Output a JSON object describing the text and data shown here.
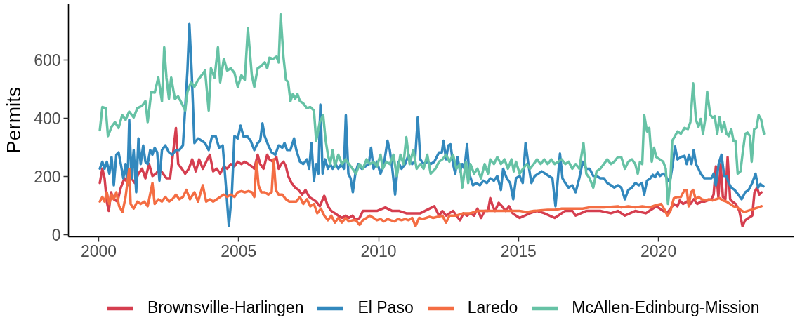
{
  "chart_data": {
    "type": "line",
    "ylabel": "Permits",
    "xlim": [
      1998.92,
      2024.84
    ],
    "ylim": [
      -7,
      793
    ],
    "xticks": [
      2000,
      2005,
      2010,
      2015,
      2020
    ],
    "yticks": [
      0,
      200,
      400,
      600
    ],
    "grid": false,
    "legend": "bottom",
    "line_style": "solid",
    "series": [
      {
        "name": "Brownsville-Harlingen",
        "color": "#d53e4f",
        "x": [
          2000.04,
          2000.13,
          2000.21,
          2000.29,
          2000.36,
          2000.44,
          2000.54,
          2000.67,
          2000.79,
          2000.92,
          2001.04,
          2001.17,
          2001.29,
          2001.42,
          2001.55,
          2001.67,
          2001.8,
          2001.92,
          2002.05,
          2002.17,
          2002.3,
          2002.42,
          2002.55,
          2002.67,
          2002.76,
          2002.84,
          2002.97,
          2003.09,
          2003.22,
          2003.34,
          2003.47,
          2003.59,
          2003.72,
          2003.84,
          2003.97,
          2004.09,
          2004.22,
          2004.34,
          2004.47,
          2004.59,
          2004.72,
          2004.85,
          2004.97,
          2005.1,
          2005.22,
          2005.35,
          2005.47,
          2005.56,
          2005.68,
          2005.77,
          2005.89,
          2006.02,
          2006.1,
          2006.23,
          2006.35,
          2006.43,
          2006.52,
          2006.6,
          2006.69,
          2006.77,
          2006.89,
          2007.02,
          2007.14,
          2007.27,
          2007.39,
          2007.52,
          2007.65,
          2007.77,
          2007.9,
          2008.06,
          2008.19,
          2008.31,
          2008.44,
          2008.56,
          2008.69,
          2008.82,
          2008.94,
          2009.07,
          2009.19,
          2009.32,
          2009.44,
          2009.69,
          2009.94,
          2010.24,
          2010.49,
          2010.74,
          2010.99,
          2011.24,
          2011.49,
          2011.74,
          2011.99,
          2012.16,
          2012.28,
          2012.41,
          2012.53,
          2012.66,
          2012.78,
          2012.91,
          2013.03,
          2013.16,
          2013.28,
          2013.41,
          2013.53,
          2013.66,
          2013.79,
          2013.91,
          2013.99,
          2014.08,
          2014.16,
          2014.29,
          2014.41,
          2014.54,
          2014.66,
          2014.79,
          2014.91,
          2015.04,
          2015.41,
          2015.66,
          2015.92,
          2016.29,
          2016.67,
          2016.92,
          2017.04,
          2017.42,
          2017.67,
          2017.92,
          2018.3,
          2018.55,
          2018.8,
          2019.17,
          2019.55,
          2019.67,
          2019.8,
          2019.92,
          2020.05,
          2020.17,
          2020.3,
          2020.43,
          2020.55,
          2020.68,
          2020.76,
          2020.88,
          2021.01,
          2021.14,
          2021.26,
          2021.39,
          2021.51,
          2021.64,
          2021.76,
          2021.89,
          2021.97,
          2022.05,
          2022.14,
          2022.22,
          2022.3,
          2022.39,
          2022.47,
          2022.56,
          2022.64,
          2022.76,
          2022.89,
          2023.0,
          2023.1,
          2023.22,
          2023.35,
          2023.43,
          2023.52,
          2023.6,
          2023.68
        ],
        "values": [
          178,
          227,
          194,
          114,
          82,
          146,
          122,
          114,
          162,
          194,
          178,
          194,
          178,
          210,
          227,
          194,
          243,
          202,
          210,
          227,
          210,
          194,
          194,
          291,
          367,
          243,
          227,
          210,
          227,
          259,
          218,
          259,
          227,
          251,
          275,
          218,
          227,
          210,
          235,
          227,
          243,
          235,
          251,
          243,
          251,
          243,
          235,
          227,
          275,
          243,
          227,
          275,
          259,
          251,
          267,
          227,
          243,
          251,
          235,
          202,
          178,
          162,
          154,
          138,
          154,
          130,
          122,
          114,
          98,
          134,
          98,
          82,
          74,
          66,
          58,
          66,
          58,
          66,
          50,
          58,
          82,
          82,
          82,
          94,
          82,
          82,
          74,
          74,
          74,
          86,
          98,
          66,
          82,
          66,
          74,
          82,
          66,
          50,
          74,
          66,
          74,
          66,
          90,
          58,
          82,
          82,
          126,
          98,
          82,
          110,
          98,
          82,
          98,
          74,
          66,
          58,
          74,
          82,
          74,
          58,
          82,
          82,
          66,
          82,
          82,
          82,
          74,
          82,
          66,
          82,
          74,
          82,
          90,
          98,
          90,
          82,
          74,
          90,
          106,
          98,
          118,
          106,
          114,
          106,
          122,
          106,
          114,
          114,
          118,
          122,
          138,
          235,
          130,
          243,
          130,
          122,
          267,
          122,
          114,
          106,
          82,
          30,
          50,
          58,
          66,
          146,
          162,
          138,
          146
        ]
      },
      {
        "name": "El Paso",
        "color": "#3288bd",
        "x": [
          2000.04,
          2000.13,
          2000.21,
          2000.29,
          2000.38,
          2000.46,
          2000.54,
          2000.63,
          2000.71,
          2000.79,
          2000.88,
          2000.96,
          2001.03,
          2001.09,
          2001.17,
          2001.25,
          2001.34,
          2001.42,
          2001.5,
          2001.59,
          2001.67,
          2001.75,
          2001.84,
          2001.92,
          2002.0,
          2002.09,
          2002.17,
          2002.26,
          2002.38,
          2002.51,
          2002.63,
          2002.76,
          2002.88,
          2003.01,
          2003.09,
          2003.17,
          2003.24,
          2003.32,
          2003.42,
          2003.55,
          2003.68,
          2003.8,
          2003.93,
          2004.05,
          2004.18,
          2004.3,
          2004.43,
          2004.55,
          2004.65,
          2004.76,
          2004.85,
          2004.97,
          2005.07,
          2005.18,
          2005.3,
          2005.43,
          2005.56,
          2005.68,
          2005.77,
          2005.85,
          2005.93,
          2006.06,
          2006.18,
          2006.31,
          2006.43,
          2006.56,
          2006.64,
          2006.73,
          2006.85,
          2006.98,
          2007.06,
          2007.19,
          2007.31,
          2007.44,
          2007.52,
          2007.6,
          2007.69,
          2007.77,
          2007.85,
          2007.92,
          2008.0,
          2008.09,
          2008.19,
          2008.27,
          2008.36,
          2008.46,
          2008.56,
          2008.67,
          2008.76,
          2008.83,
          2008.92,
          2009.0,
          2009.08,
          2009.17,
          2009.27,
          2009.4,
          2009.53,
          2009.65,
          2009.73,
          2009.82,
          2009.94,
          2010.07,
          2010.19,
          2010.32,
          2010.4,
          2010.49,
          2010.59,
          2010.7,
          2010.82,
          2010.95,
          2011.07,
          2011.2,
          2011.3,
          2011.4,
          2011.49,
          2011.61,
          2011.74,
          2011.86,
          2011.99,
          2012.16,
          2012.26,
          2012.32,
          2012.41,
          2012.49,
          2012.57,
          2012.66,
          2012.74,
          2012.82,
          2012.91,
          2012.99,
          2013.07,
          2013.16,
          2013.24,
          2013.37,
          2013.49,
          2013.62,
          2013.74,
          2013.87,
          2013.99,
          2014.12,
          2014.24,
          2014.37,
          2014.45,
          2014.58,
          2014.7,
          2014.81,
          2014.91,
          2015.04,
          2015.15,
          2015.25,
          2015.35,
          2015.46,
          2015.58,
          2015.71,
          2015.83,
          2015.96,
          2016.08,
          2016.21,
          2016.32,
          2016.42,
          2016.48,
          2016.57,
          2016.67,
          2016.79,
          2016.92,
          2017.04,
          2017.17,
          2017.29,
          2017.42,
          2017.54,
          2017.67,
          2017.79,
          2017.92,
          2018.05,
          2018.17,
          2018.3,
          2018.42,
          2018.55,
          2018.67,
          2018.8,
          2018.92,
          2019.05,
          2019.17,
          2019.3,
          2019.41,
          2019.49,
          2019.59,
          2019.71,
          2019.8,
          2019.88,
          2019.97,
          2020.05,
          2020.17,
          2020.26,
          2020.34,
          2020.43,
          2020.51,
          2020.59,
          2020.68,
          2020.8,
          2020.93,
          2021.01,
          2021.09,
          2021.18,
          2021.26,
          2021.34,
          2021.43,
          2021.51,
          2021.64,
          2021.76,
          2021.89,
          2021.97,
          2022.05,
          2022.15,
          2022.25,
          2022.35,
          2022.43,
          2022.51,
          2022.6,
          2022.72,
          2022.85,
          2022.97,
          2023.1,
          2023.22,
          2023.35,
          2023.47,
          2023.56,
          2023.64,
          2023.75
        ],
        "values": [
          227,
          251,
          227,
          251,
          210,
          267,
          170,
          275,
          283,
          243,
          194,
          243,
          170,
          395,
          194,
          291,
          146,
          331,
          243,
          307,
          251,
          243,
          291,
          275,
          299,
          283,
          186,
          291,
          307,
          283,
          275,
          291,
          291,
          307,
          435,
          564,
          724,
          564,
          315,
          331,
          323,
          315,
          291,
          339,
          339,
          299,
          307,
          162,
          30,
          146,
          339,
          331,
          375,
          336,
          339,
          323,
          291,
          315,
          323,
          383,
          339,
          307,
          283,
          275,
          307,
          299,
          315,
          291,
          291,
          331,
          291,
          251,
          243,
          259,
          227,
          315,
          186,
          243,
          210,
          447,
          210,
          259,
          227,
          243,
          227,
          243,
          227,
          243,
          227,
          411,
          210,
          194,
          146,
          210,
          243,
          227,
          235,
          243,
          299,
          227,
          251,
          210,
          243,
          323,
          291,
          227,
          138,
          251,
          227,
          243,
          275,
          243,
          251,
          403,
          259,
          243,
          251,
          243,
          251,
          283,
          283,
          323,
          259,
          307,
          311,
          243,
          210,
          267,
          218,
          243,
          227,
          311,
          210,
          170,
          178,
          170,
          186,
          178,
          194,
          186,
          202,
          154,
          227,
          194,
          178,
          122,
          194,
          202,
          178,
          315,
          243,
          178,
          202,
          210,
          218,
          210,
          202,
          194,
          98,
          210,
          279,
          194,
          178,
          162,
          170,
          146,
          194,
          251,
          227,
          227,
          202,
          202,
          194,
          194,
          178,
          170,
          162,
          170,
          162,
          122,
          154,
          162,
          178,
          170,
          178,
          138,
          186,
          194,
          206,
          198,
          214,
          202,
          210,
          202,
          186,
          194,
          243,
          303,
          259,
          267,
          271,
          243,
          275,
          243,
          291,
          243,
          227,
          210,
          194,
          194,
          194,
          210,
          170,
          243,
          275,
          202,
          202,
          178,
          162,
          154,
          138,
          122,
          146,
          154,
          178,
          210,
          162,
          174,
          166
        ]
      },
      {
        "name": "Laredo",
        "color": "#f46d43",
        "x": [
          2000.04,
          2000.13,
          2000.21,
          2000.29,
          2000.38,
          2000.46,
          2000.54,
          2000.63,
          2000.73,
          2000.85,
          2000.96,
          2001.09,
          2001.14,
          2001.25,
          2001.38,
          2001.5,
          2001.63,
          2001.75,
          2001.92,
          2002.0,
          2002.13,
          2002.26,
          2002.38,
          2002.51,
          2002.63,
          2002.76,
          2002.88,
          2003.01,
          2003.13,
          2003.26,
          2003.42,
          2003.55,
          2003.72,
          2003.84,
          2003.97,
          2004.09,
          2004.22,
          2004.34,
          2004.47,
          2004.59,
          2004.72,
          2004.85,
          2004.97,
          2005.1,
          2005.22,
          2005.35,
          2005.47,
          2005.56,
          2005.64,
          2005.71,
          2005.81,
          2005.93,
          2006.06,
          2006.18,
          2006.25,
          2006.33,
          2006.43,
          2006.56,
          2006.69,
          2006.81,
          2006.94,
          2007.06,
          2007.19,
          2007.31,
          2007.44,
          2007.56,
          2007.69,
          2007.81,
          2007.94,
          2008.06,
          2008.19,
          2008.31,
          2008.44,
          2008.56,
          2008.69,
          2008.82,
          2008.94,
          2009.07,
          2009.19,
          2009.32,
          2009.44,
          2009.57,
          2009.69,
          2009.82,
          2009.94,
          2010.07,
          2010.19,
          2010.32,
          2010.44,
          2010.57,
          2010.69,
          2010.82,
          2010.95,
          2011.07,
          2011.2,
          2011.32,
          2011.45,
          2011.57,
          2011.7,
          2011.82,
          2011.95,
          2012.28,
          2012.41,
          2012.53,
          2012.78,
          2013.03,
          2013.28,
          2013.53,
          2013.79,
          2014.04,
          2014.29,
          2014.54,
          2014.79,
          2015.04,
          2015.29,
          2015.54,
          2015.79,
          2016.04,
          2016.29,
          2016.54,
          2016.79,
          2017.04,
          2017.29,
          2017.54,
          2017.79,
          2018.05,
          2018.3,
          2018.55,
          2018.67,
          2018.92,
          2019.17,
          2019.42,
          2019.67,
          2019.92,
          2020.09,
          2020.22,
          2020.32,
          2020.43,
          2020.55,
          2020.68,
          2020.8,
          2020.93,
          2021.01,
          2021.08,
          2021.16,
          2021.24,
          2021.33,
          2021.43,
          2021.55,
          2021.68,
          2021.8,
          2021.93,
          2022.05,
          2022.18,
          2022.3,
          2022.43,
          2022.56,
          2022.68,
          2022.81,
          2022.93,
          2023.06,
          2023.18,
          2023.31,
          2023.43,
          2023.56,
          2023.68
        ],
        "values": [
          114,
          130,
          114,
          146,
          106,
          138,
          122,
          146,
          98,
          78,
          130,
          227,
          106,
          90,
          114,
          106,
          114,
          98,
          178,
          106,
          122,
          114,
          130,
          114,
          122,
          138,
          122,
          130,
          154,
          122,
          146,
          114,
          170,
          114,
          122,
          114,
          122,
          130,
          138,
          130,
          138,
          130,
          146,
          150,
          146,
          150,
          146,
          130,
          251,
          170,
          146,
          146,
          138,
          146,
          259,
          154,
          138,
          138,
          122,
          114,
          114,
          114,
          130,
          106,
          122,
          98,
          106,
          74,
          90,
          66,
          50,
          66,
          42,
          58,
          42,
          58,
          46,
          50,
          50,
          34,
          50,
          58,
          66,
          58,
          50,
          54,
          46,
          54,
          50,
          46,
          54,
          50,
          54,
          50,
          58,
          30,
          58,
          54,
          58,
          62,
          58,
          66,
          42,
          66,
          66,
          74,
          74,
          82,
          82,
          82,
          82,
          82,
          82,
          82,
          78,
          82,
          84,
          86,
          86,
          90,
          90,
          90,
          90,
          94,
          94,
          94,
          96,
          98,
          94,
          98,
          94,
          98,
          94,
          102,
          106,
          86,
          66,
          82,
          126,
          130,
          130,
          154,
          154,
          98,
          146,
          154,
          122,
          130,
          122,
          118,
          122,
          118,
          122,
          126,
          118,
          114,
          106,
          98,
          94,
          86,
          78,
          82,
          86,
          90,
          94,
          98
        ]
      },
      {
        "name": "McAllen-Edinburg-Mission",
        "color": "#66c2a5",
        "x": [
          2000.04,
          2000.13,
          2000.25,
          2000.33,
          2000.46,
          2000.58,
          2000.71,
          2000.84,
          2000.96,
          2001.09,
          2001.25,
          2001.38,
          2001.55,
          2001.67,
          2001.75,
          2001.88,
          2002.0,
          2002.13,
          2002.26,
          2002.34,
          2002.42,
          2002.51,
          2002.59,
          2002.72,
          2002.84,
          2002.97,
          2003.09,
          2003.17,
          2003.3,
          2003.42,
          2003.55,
          2003.68,
          2003.8,
          2003.93,
          2004.01,
          2004.14,
          2004.26,
          2004.34,
          2004.47,
          2004.59,
          2004.72,
          2004.85,
          2004.97,
          2005.1,
          2005.22,
          2005.33,
          2005.47,
          2005.56,
          2005.68,
          2005.81,
          2005.93,
          2006.02,
          2006.1,
          2006.23,
          2006.35,
          2006.43,
          2006.5,
          2006.6,
          2006.69,
          2006.77,
          2006.85,
          2006.94,
          2007.02,
          2007.1,
          2007.19,
          2007.31,
          2007.44,
          2007.56,
          2007.69,
          2007.77,
          2007.9,
          2008.02,
          2008.11,
          2008.19,
          2008.27,
          2008.36,
          2008.44,
          2008.56,
          2008.69,
          2008.82,
          2008.94,
          2009.07,
          2009.19,
          2009.32,
          2009.44,
          2009.57,
          2009.69,
          2009.82,
          2009.94,
          2010.07,
          2010.15,
          2010.28,
          2010.4,
          2010.53,
          2010.65,
          2010.78,
          2010.89,
          2010.99,
          2011.11,
          2011.24,
          2011.36,
          2011.49,
          2011.61,
          2011.74,
          2011.86,
          2012.03,
          2012.16,
          2012.28,
          2012.41,
          2012.53,
          2012.66,
          2012.78,
          2012.91,
          2012.99,
          2013.12,
          2013.2,
          2013.28,
          2013.41,
          2013.53,
          2013.66,
          2013.79,
          2013.91,
          2013.99,
          2014.12,
          2014.24,
          2014.37,
          2014.5,
          2014.62,
          2014.75,
          2014.83,
          2014.91,
          2015.04,
          2015.16,
          2015.29,
          2015.41,
          2015.54,
          2015.66,
          2015.79,
          2015.92,
          2016.04,
          2016.17,
          2016.29,
          2016.42,
          2016.54,
          2016.67,
          2016.79,
          2016.92,
          2017.04,
          2017.17,
          2017.32,
          2017.42,
          2017.54,
          2017.67,
          2017.79,
          2017.92,
          2018.05,
          2018.17,
          2018.3,
          2018.42,
          2018.55,
          2018.67,
          2018.8,
          2018.92,
          2019.05,
          2019.17,
          2019.26,
          2019.34,
          2019.42,
          2019.49,
          2019.59,
          2019.67,
          2019.76,
          2019.84,
          2019.92,
          2020.05,
          2020.17,
          2020.26,
          2020.34,
          2020.43,
          2020.49,
          2020.59,
          2020.68,
          2020.8,
          2020.93,
          2021.05,
          2021.14,
          2021.24,
          2021.34,
          2021.43,
          2021.51,
          2021.59,
          2021.68,
          2021.74,
          2021.85,
          2021.93,
          2022.01,
          2022.1,
          2022.18,
          2022.26,
          2022.35,
          2022.43,
          2022.51,
          2022.6,
          2022.68,
          2022.75,
          2022.83,
          2022.93,
          2023.01,
          2023.1,
          2023.18,
          2023.27,
          2023.33,
          2023.42,
          2023.5,
          2023.58,
          2023.67,
          2023.77
        ],
        "values": [
          359,
          439,
          435,
          339,
          371,
          387,
          367,
          411,
          395,
          423,
          403,
          435,
          443,
          459,
          387,
          491,
          488,
          540,
          459,
          644,
          540,
          467,
          540,
          467,
          475,
          451,
          427,
          491,
          524,
          508,
          532,
          548,
          564,
          427,
          572,
          540,
          644,
          524,
          604,
          564,
          572,
          556,
          508,
          548,
          532,
          710,
          548,
          508,
          572,
          580,
          592,
          572,
          608,
          604,
          612,
          592,
          757,
          612,
          532,
          524,
          459,
          484,
          467,
          484,
          459,
          451,
          435,
          439,
          427,
          323,
          387,
          411,
          323,
          275,
          243,
          291,
          235,
          275,
          243,
          259,
          243,
          227,
          210,
          243,
          227,
          259,
          243,
          251,
          235,
          275,
          227,
          251,
          243,
          275,
          202,
          275,
          243,
          335,
          243,
          291,
          227,
          243,
          227,
          275,
          210,
          227,
          251,
          259,
          275,
          251,
          275,
          227,
          243,
          162,
          251,
          178,
          243,
          210,
          227,
          194,
          243,
          210,
          259,
          243,
          267,
          243,
          259,
          227,
          259,
          218,
          251,
          210,
          227,
          243,
          227,
          243,
          259,
          243,
          259,
          243,
          259,
          243,
          251,
          259,
          243,
          251,
          227,
          243,
          227,
          315,
          210,
          194,
          162,
          218,
          227,
          243,
          259,
          243,
          251,
          267,
          267,
          227,
          251,
          259,
          243,
          210,
          251,
          243,
          411,
          355,
          367,
          251,
          299,
          267,
          259,
          251,
          227,
          106,
          194,
          323,
          339,
          355,
          347,
          367,
          363,
          387,
          520,
          395,
          371,
          398,
          347,
          403,
          492,
          411,
          403,
          407,
          347,
          403,
          355,
          387,
          347,
          339,
          363,
          323,
          323,
          210,
          218,
          283,
          347,
          351,
          339,
          251,
          363,
          367,
          411,
          395,
          347
        ]
      }
    ]
  }
}
